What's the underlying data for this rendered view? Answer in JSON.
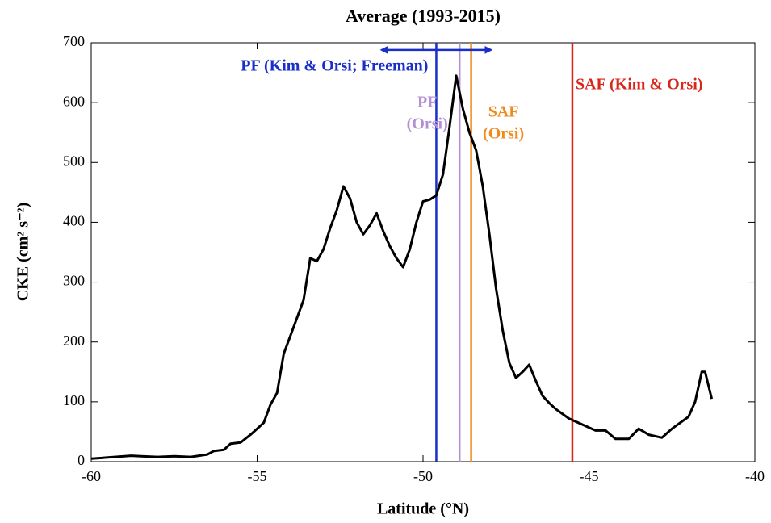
{
  "chart_data": {
    "type": "line",
    "title": "Average (1993-2015)",
    "x_label": "Latitude (°N)",
    "y_label": "CKE (cm² s⁻²)",
    "xlim": [
      -60,
      -40
    ],
    "xticks": [
      -60,
      -55,
      -50,
      -45,
      -40
    ],
    "ylim": [
      0,
      700
    ],
    "yticks": [
      0,
      100,
      200,
      300,
      400,
      500,
      600,
      700
    ],
    "series": [
      {
        "color": "#000000",
        "x": [
          -60,
          -59.5,
          -59,
          -58.8,
          -58.5,
          -58,
          -57.5,
          -57,
          -56.5,
          -56.3,
          -56,
          -55.8,
          -55.5,
          -55.2,
          -55,
          -54.8,
          -54.6,
          -54.4,
          -54.2,
          -54,
          -53.8,
          -53.6,
          -53.4,
          -53.2,
          -53,
          -52.8,
          -52.6,
          -52.4,
          -52.2,
          -52,
          -51.8,
          -51.6,
          -51.4,
          -51.2,
          -51,
          -50.8,
          -50.6,
          -50.4,
          -50.2,
          -50,
          -49.8,
          -49.6,
          -49.4,
          -49.2,
          -49,
          -48.8,
          -48.6,
          -48.4,
          -48.2,
          -48,
          -47.8,
          -47.6,
          -47.4,
          -47.2,
          -47,
          -46.8,
          -46.6,
          -46.4,
          -46.2,
          -46,
          -45.6,
          -45.2,
          -44.8,
          -44.5,
          -44.2,
          -43.8,
          -43.5,
          -43.2,
          -42.8,
          -42.5,
          -42,
          -41.8,
          -41.6,
          -41.5,
          -41.3
        ],
        "values": [
          5,
          7,
          9,
          10,
          9,
          8,
          9,
          8,
          12,
          18,
          20,
          30,
          32,
          45,
          55,
          65,
          95,
          115,
          180,
          210,
          240,
          270,
          340,
          335,
          355,
          390,
          420,
          460,
          440,
          400,
          380,
          395,
          415,
          385,
          360,
          340,
          325,
          355,
          400,
          435,
          438,
          445,
          480,
          560,
          645,
          590,
          550,
          520,
          460,
          380,
          290,
          220,
          165,
          140,
          150,
          162,
          135,
          110,
          98,
          88,
          72,
          62,
          52,
          52,
          38,
          38,
          55,
          45,
          40,
          55,
          75,
          100,
          150,
          150,
          105
        ]
      }
    ],
    "vlines": [
      {
        "x": -49.6,
        "color": "#1a2ec8",
        "label_lines": [
          "PF (Kim & Orsi; Freeman)"
        ]
      },
      {
        "x": -48.9,
        "color": "#b48fd6",
        "label_lines": [
          "PF",
          "(Orsi)"
        ]
      },
      {
        "x": -48.55,
        "color": "#f08a1c",
        "label_lines": [
          "SAF",
          "(Orsi)"
        ]
      },
      {
        "x": -45.5,
        "color": "#d8261c",
        "label_lines": [
          "SAF (Kim & Orsi)"
        ]
      }
    ],
    "arrow": {
      "x": [
        -51.3,
        -47.9
      ],
      "y": 688,
      "color": "#1a2ec8"
    }
  }
}
